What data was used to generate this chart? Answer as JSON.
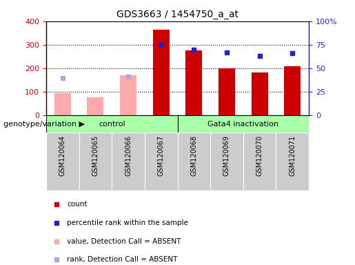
{
  "title": "GDS3663 / 1454750_a_at",
  "samples": [
    "GSM120064",
    "GSM120065",
    "GSM120066",
    "GSM120067",
    "GSM120068",
    "GSM120069",
    "GSM120070",
    "GSM120071"
  ],
  "red_bars": [
    0,
    0,
    0,
    365,
    275,
    200,
    183,
    208
  ],
  "pink_bars": [
    93,
    75,
    170,
    0,
    0,
    0,
    0,
    0
  ],
  "blue_squares": [
    null,
    null,
    null,
    75,
    70,
    67,
    63,
    66
  ],
  "light_blue_squares": [
    40,
    null,
    41,
    null,
    null,
    null,
    null,
    null
  ],
  "left_ylim": [
    0,
    400
  ],
  "right_ylim": [
    0,
    100
  ],
  "left_yticks": [
    0,
    100,
    200,
    300,
    400
  ],
  "right_yticks": [
    0,
    25,
    50,
    75,
    100
  ],
  "right_yticklabels": [
    "0",
    "25",
    "50",
    "75",
    "100%"
  ],
  "red_color": "#cc0000",
  "pink_color": "#ffaaaa",
  "blue_color": "#2222cc",
  "light_blue_color": "#aaaadd",
  "left_axis_color": "#cc0000",
  "right_axis_color": "#2222cc",
  "bar_width": 0.5,
  "group_bg_color": "#aaffaa",
  "tick_bg_color": "#cccccc",
  "plot_bg_color": "#ffffff",
  "group1_label": "control",
  "group2_label": "Gata4 inactivation",
  "genotype_label": "genotype/variation",
  "legend_items": [
    {
      "color": "#cc0000",
      "label": "count"
    },
    {
      "color": "#2222cc",
      "label": "percentile rank within the sample"
    },
    {
      "color": "#ffaaaa",
      "label": "value, Detection Call = ABSENT"
    },
    {
      "color": "#aaaadd",
      "label": "rank, Detection Call = ABSENT"
    }
  ]
}
